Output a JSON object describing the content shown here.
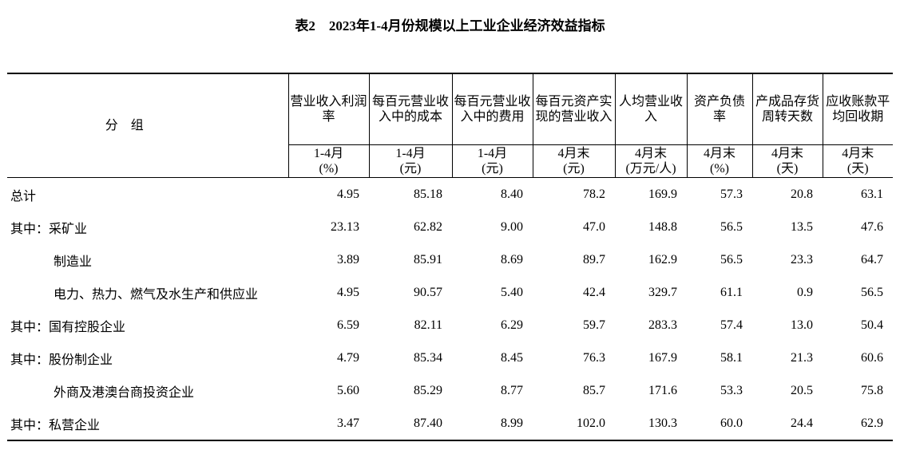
{
  "header": {
    "title": "表2　2023年1-4月份规模以上工业企业经济效益指标"
  },
  "table": {
    "group_header": "分　组",
    "columns": [
      {
        "name": "营业收入利润率",
        "period": "1-4月",
        "unit": "(%)"
      },
      {
        "name": "每百元营业收入中的成本",
        "period": "1-4月",
        "unit": "(元)"
      },
      {
        "name": "每百元营业收入中的费用",
        "period": "1-4月",
        "unit": "(元)"
      },
      {
        "name": "每百元资产实现的营业收入",
        "period": "4月末",
        "unit": "(元)"
      },
      {
        "name": "人均营业收入",
        "period": "4月末",
        "unit": "(万元/人)"
      },
      {
        "name": "资产负债率",
        "period": "4月末",
        "unit": "(%)"
      },
      {
        "name": "产成品存货周转天数",
        "period": "4月末",
        "unit": "(天)"
      },
      {
        "name": "应收账款平均回收期",
        "period": "4月末",
        "unit": "(天)"
      }
    ],
    "rows": [
      [
        "总计",
        "4.95",
        "85.18",
        "8.40",
        "78.2",
        "169.9",
        "57.3",
        "20.8",
        "63.1"
      ],
      [
        "其中：采矿业",
        "23.13",
        "62.82",
        "9.00",
        "47.0",
        "148.8",
        "56.5",
        "13.5",
        "47.6"
      ],
      [
        "制造业",
        "3.89",
        "85.91",
        "8.69",
        "89.7",
        "162.9",
        "56.5",
        "23.3",
        "64.7"
      ],
      [
        "电力、热力、燃气及水生产和供应业",
        "4.95",
        "90.57",
        "5.40",
        "42.4",
        "329.7",
        "61.1",
        "0.9",
        "56.5"
      ],
      [
        "其中：国有控股企业",
        "6.59",
        "82.11",
        "6.29",
        "59.7",
        "283.3",
        "57.4",
        "13.0",
        "50.4"
      ],
      [
        "其中：股份制企业",
        "4.79",
        "85.34",
        "8.45",
        "76.3",
        "167.9",
        "58.1",
        "21.3",
        "60.6"
      ],
      [
        "外商及港澳台商投资企业",
        "5.60",
        "85.29",
        "8.77",
        "85.7",
        "171.6",
        "53.3",
        "20.5",
        "75.8"
      ],
      [
        "其中：私营企业",
        "3.47",
        "87.40",
        "8.99",
        "102.0",
        "130.3",
        "60.0",
        "24.4",
        "62.9"
      ]
    ]
  }
}
